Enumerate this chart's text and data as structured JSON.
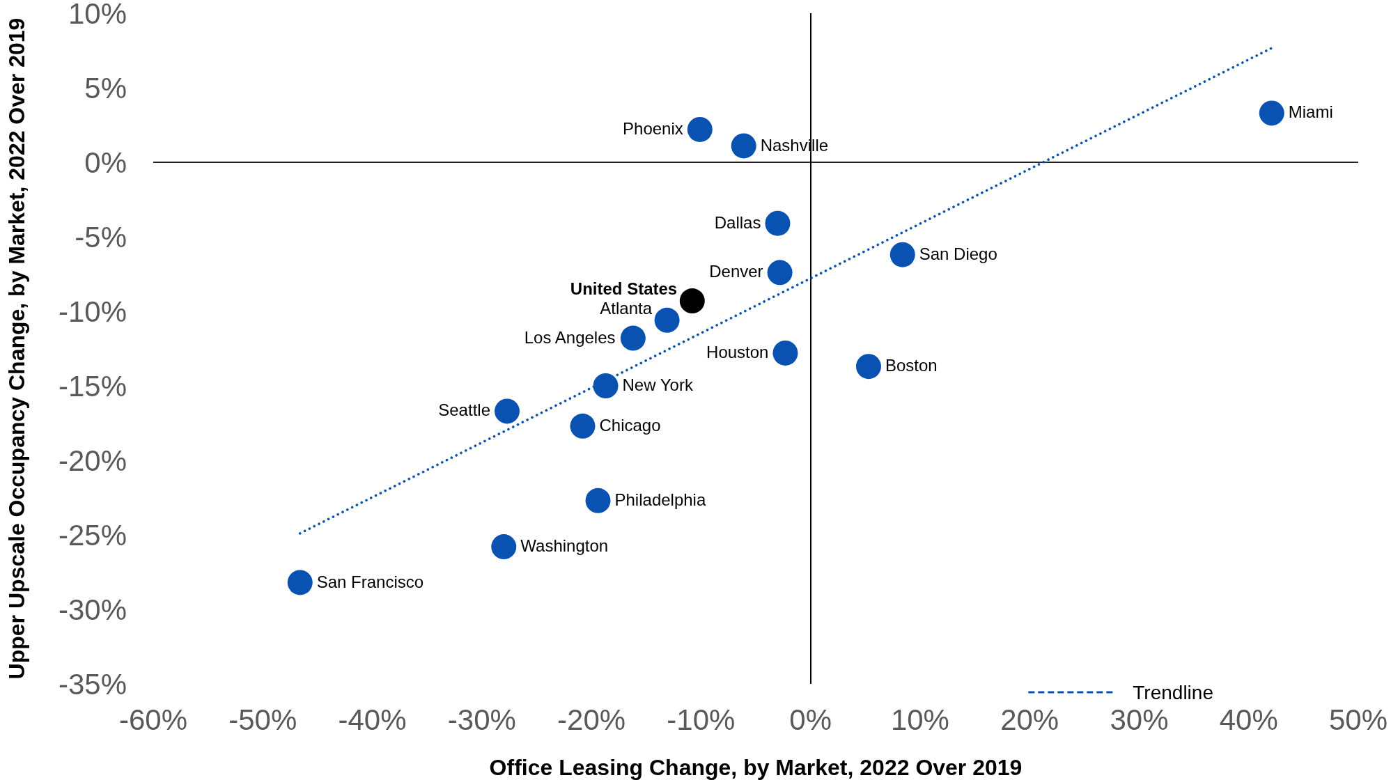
{
  "chart_data": {
    "type": "scatter",
    "xlabel": "Office Leasing Change, by Market, 2022 Over 2019",
    "ylabel": "Upper Upscale Occupancy Change, by Market, 2022 Over 2019",
    "xlim": [
      -60,
      50
    ],
    "xticks": [
      {
        "value": -60,
        "label": "-60%"
      },
      {
        "value": -50,
        "label": "-50%"
      },
      {
        "value": -40,
        "label": "-40%"
      },
      {
        "value": -30,
        "label": "-30%"
      },
      {
        "value": -20,
        "label": "-20%"
      },
      {
        "value": -10,
        "label": "-10%"
      },
      {
        "value": 0,
        "label": "0%"
      },
      {
        "value": 10,
        "label": "10%"
      },
      {
        "value": 20,
        "label": "20%"
      },
      {
        "value": 30,
        "label": "30%"
      },
      {
        "value": 40,
        "label": "40%"
      },
      {
        "value": 50,
        "label": "50%"
      }
    ],
    "ylim": [
      -35,
      10
    ],
    "yticks": [
      {
        "value": -35,
        "label": "-35%"
      },
      {
        "value": -30,
        "label": "-30%"
      },
      {
        "value": -25,
        "label": "-25%"
      },
      {
        "value": -20,
        "label": "-20%"
      },
      {
        "value": -15,
        "label": "-15%"
      },
      {
        "value": -10,
        "label": "-10%"
      },
      {
        "value": -5,
        "label": "-5%"
      },
      {
        "value": 0,
        "label": "0%"
      },
      {
        "value": 5,
        "label": "5%"
      },
      {
        "value": 10,
        "label": "10%"
      }
    ],
    "grid": false,
    "legend": "bottom right",
    "series": [
      {
        "x": [
          -10.1,
          -6.1,
          42.1,
          -3.0,
          8.4,
          -2.8,
          -13.1,
          -16.2,
          -2.3,
          5.3,
          -18.7,
          -27.7,
          -20.8,
          -19.4,
          -28.0,
          -46.6
        ],
        "values": [
          2.2,
          1.1,
          3.3,
          -4.1,
          -6.2,
          -7.4,
          -10.6,
          -11.8,
          -12.8,
          -13.7,
          -15.0,
          -16.7,
          -17.7,
          -22.7,
          -25.8,
          -28.2
        ],
        "color": "#0a52b2",
        "marker": "circle"
      },
      {
        "name": "United States",
        "x": [
          -10.8
        ],
        "values": [
          -9.3
        ],
        "color": "#000000",
        "marker": "circle"
      },
      {
        "type": "line",
        "name": "Trendline",
        "x": [
          -46.6,
          42.2
        ],
        "values": [
          -24.9,
          7.7
        ],
        "color": "#0a52b2",
        "line_style": "dotted"
      }
    ],
    "ref_lines": [
      {
        "axis": "y",
        "value": 0,
        "color": "#262626"
      },
      {
        "axis": "x",
        "value": 0,
        "color": "#000000"
      }
    ],
    "annotations": [
      {
        "text": "Phoenix",
        "x": -10.1,
        "y": 2.2
      },
      {
        "text": "Nashville",
        "x": -6.1,
        "y": 1.1
      },
      {
        "text": "Miami",
        "x": 42.1,
        "y": 3.3
      },
      {
        "text": "Dallas",
        "x": -3.0,
        "y": -4.1
      },
      {
        "text": "San Diego",
        "x": 8.4,
        "y": -6.2
      },
      {
        "text": "Denver",
        "x": -2.8,
        "y": -7.4
      },
      {
        "text": "Atlanta",
        "x": -13.1,
        "y": -10.6
      },
      {
        "text": "Los Angeles",
        "x": -16.2,
        "y": -11.8
      },
      {
        "text": "Houston",
        "x": -2.3,
        "y": -12.8
      },
      {
        "text": "Boston",
        "x": 5.3,
        "y": -13.7
      },
      {
        "text": "New York",
        "x": -18.7,
        "y": -15.0
      },
      {
        "text": "Seattle",
        "x": -27.7,
        "y": -16.7
      },
      {
        "text": "Chicago",
        "x": -20.8,
        "y": -17.7
      },
      {
        "text": "Philadelphia",
        "x": -19.4,
        "y": -22.7
      },
      {
        "text": "Washington",
        "x": -28.0,
        "y": -25.8
      },
      {
        "text": "San Francisco",
        "x": -46.6,
        "y": -28.2
      }
    ]
  }
}
